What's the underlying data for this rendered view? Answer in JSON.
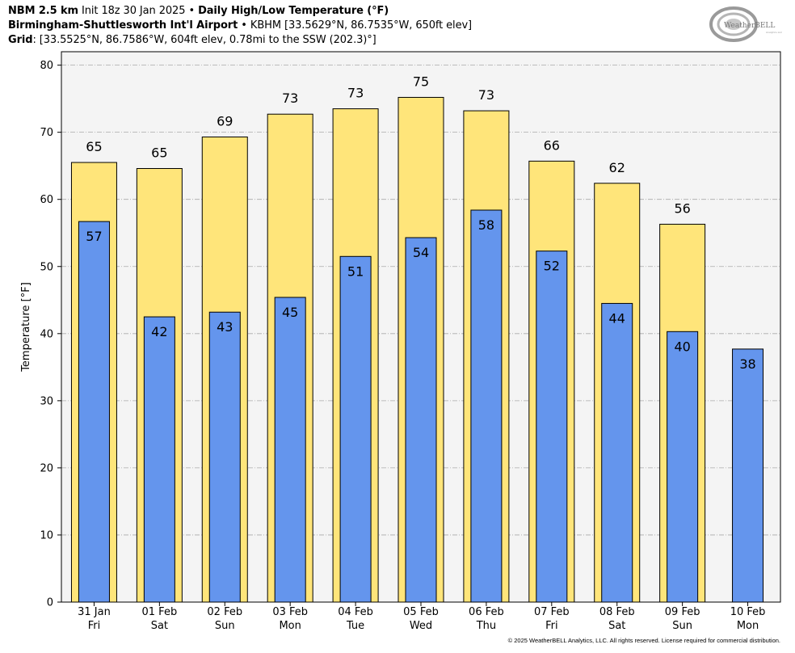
{
  "header": {
    "model": "NBM 2.5 km",
    "init": "Init 18z 30 Jan 2025",
    "product": "Daily High/Low Temperature (°F)",
    "station_name": "Birmingham-Shuttlesworth Int'l Airport",
    "station_info": "KBHM [33.5629°N, 86.7535°W, 650ft elev]",
    "grid_label": "Grid",
    "grid_info": "[33.5525°N, 86.7586°W, 604ft elev, 0.78mi to the SSW (202.3)°]",
    "separator": "•"
  },
  "logo": {
    "text": "WeatherBELL",
    "subtext": "Analytics LLC"
  },
  "copyright": "© 2025 WeatherBELL Analytics, LLC. All rights reserved. License required for commercial distribution.",
  "colors": {
    "high": "#FFE57A",
    "low": "#6495ED",
    "plot_bg": "#F4F4F4",
    "grid": "#AAAAAA"
  },
  "chart_data": {
    "type": "bar",
    "ylabel": "Temperature [°F]",
    "ylim": [
      0,
      82
    ],
    "yticks": [
      0,
      10,
      20,
      30,
      40,
      50,
      60,
      70,
      80
    ],
    "grid": true,
    "categories": [
      [
        "31 Jan",
        "Fri"
      ],
      [
        "01 Feb",
        "Sat"
      ],
      [
        "02 Feb",
        "Sun"
      ],
      [
        "03 Feb",
        "Mon"
      ],
      [
        "04 Feb",
        "Tue"
      ],
      [
        "05 Feb",
        "Wed"
      ],
      [
        "06 Feb",
        "Thu"
      ],
      [
        "07 Feb",
        "Fri"
      ],
      [
        "08 Feb",
        "Sat"
      ],
      [
        "09 Feb",
        "Sun"
      ],
      [
        "10 Feb",
        "Mon"
      ]
    ],
    "series": [
      {
        "key": "high",
        "values": [
          65.5,
          64.6,
          69.3,
          72.7,
          73.5,
          75.2,
          73.2,
          65.7,
          62.4,
          56.3,
          null
        ],
        "labels": [
          "65",
          "65",
          "69",
          "73",
          "73",
          "75",
          "73",
          "66",
          "62",
          "56",
          null
        ]
      },
      {
        "key": "low",
        "values": [
          56.7,
          42.5,
          43.2,
          45.4,
          51.5,
          54.3,
          58.4,
          52.3,
          44.5,
          40.3,
          37.7
        ],
        "labels": [
          "57",
          "42",
          "43",
          "45",
          "51",
          "54",
          "58",
          "52",
          "44",
          "40",
          "38"
        ]
      }
    ]
  }
}
